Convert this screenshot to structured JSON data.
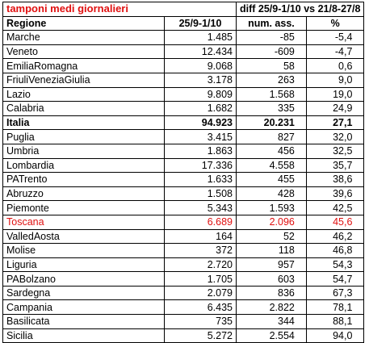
{
  "title": "tamponi medi giornalieri",
  "diff_header": "diff 25/9-1/10 vs 21/8-27/8",
  "columns": {
    "region": "Regione",
    "period": "25/9-1/10",
    "abs": "num. ass.",
    "pct": "%"
  },
  "rows": [
    {
      "region": "Marche",
      "period": "1.485",
      "abs": "-85",
      "pct": "-5,4"
    },
    {
      "region": "Veneto",
      "period": "12.434",
      "abs": "-609",
      "pct": "-4,7"
    },
    {
      "region": "EmiliaRomagna",
      "period": "9.068",
      "abs": "58",
      "pct": "0,6"
    },
    {
      "region": "FriuliVeneziaGiulia",
      "period": "3.178",
      "abs": "263",
      "pct": "9,0"
    },
    {
      "region": "Lazio",
      "period": "9.809",
      "abs": "1.568",
      "pct": "19,0"
    },
    {
      "region": "Calabria",
      "period": "1.682",
      "abs": "335",
      "pct": "24,9"
    },
    {
      "region": "Italia",
      "period": "94.923",
      "abs": "20.231",
      "pct": "27,1"
    },
    {
      "region": "Puglia",
      "period": "3.415",
      "abs": "827",
      "pct": "32,0"
    },
    {
      "region": "Umbria",
      "period": "1.863",
      "abs": "456",
      "pct": "32,5"
    },
    {
      "region": "Lombardia",
      "period": "17.336",
      "abs": "4.558",
      "pct": "35,7"
    },
    {
      "region": "PATrento",
      "period": "1.633",
      "abs": "455",
      "pct": "38,6"
    },
    {
      "region": "Abruzzo",
      "period": "1.508",
      "abs": "428",
      "pct": "39,6"
    },
    {
      "region": "Piemonte",
      "period": "5.343",
      "abs": "1.593",
      "pct": "42,5"
    },
    {
      "region": "Toscana",
      "period": "6.689",
      "abs": "2.096",
      "pct": "45,6"
    },
    {
      "region": "ValledAosta",
      "period": "164",
      "abs": "52",
      "pct": "46,2"
    },
    {
      "region": "Molise",
      "period": "372",
      "abs": "118",
      "pct": "46,8"
    },
    {
      "region": "Liguria",
      "period": "2.720",
      "abs": "957",
      "pct": "54,3"
    },
    {
      "region": "PABolzano",
      "period": "1.705",
      "abs": "603",
      "pct": "54,7"
    },
    {
      "region": "Sardegna",
      "period": "2.079",
      "abs": "836",
      "pct": "67,3"
    },
    {
      "region": "Campania",
      "period": "6.435",
      "abs": "2.822",
      "pct": "78,1"
    },
    {
      "region": "Basilicata",
      "period": "735",
      "abs": "344",
      "pct": "88,1"
    },
    {
      "region": "Sicilia",
      "period": "5.272",
      "abs": "2.554",
      "pct": "94,0"
    }
  ],
  "colors": {
    "highlight": "#e01010",
    "text": "#000000"
  }
}
